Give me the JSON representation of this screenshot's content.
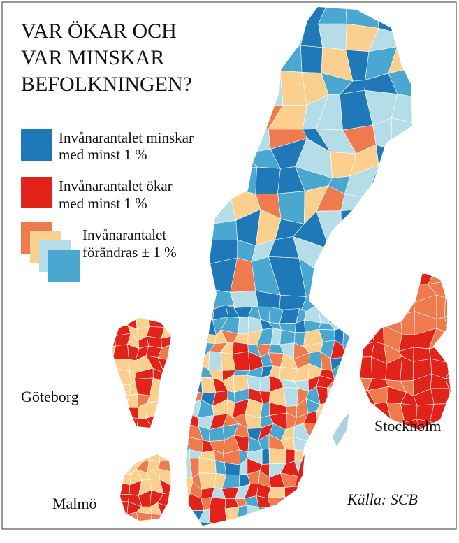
{
  "title_lines": [
    "VAR ÖKAR OCH",
    "VAR MINSKAR",
    "BEFOLKNINGEN?"
  ],
  "legend": [
    {
      "label_lines": [
        "Invånarantalet minskar",
        "med minst 1 %"
      ]
    },
    {
      "label_lines": [
        "Invånarantalet ökar",
        "med minst 1 %"
      ]
    },
    {
      "label_lines": [
        "Invånarantalet",
        "förändras ± 1 %"
      ]
    }
  ],
  "cities": [
    "Göteborg",
    "Stockholm",
    "Malmö"
  ],
  "source": "Källa: SCB"
}
